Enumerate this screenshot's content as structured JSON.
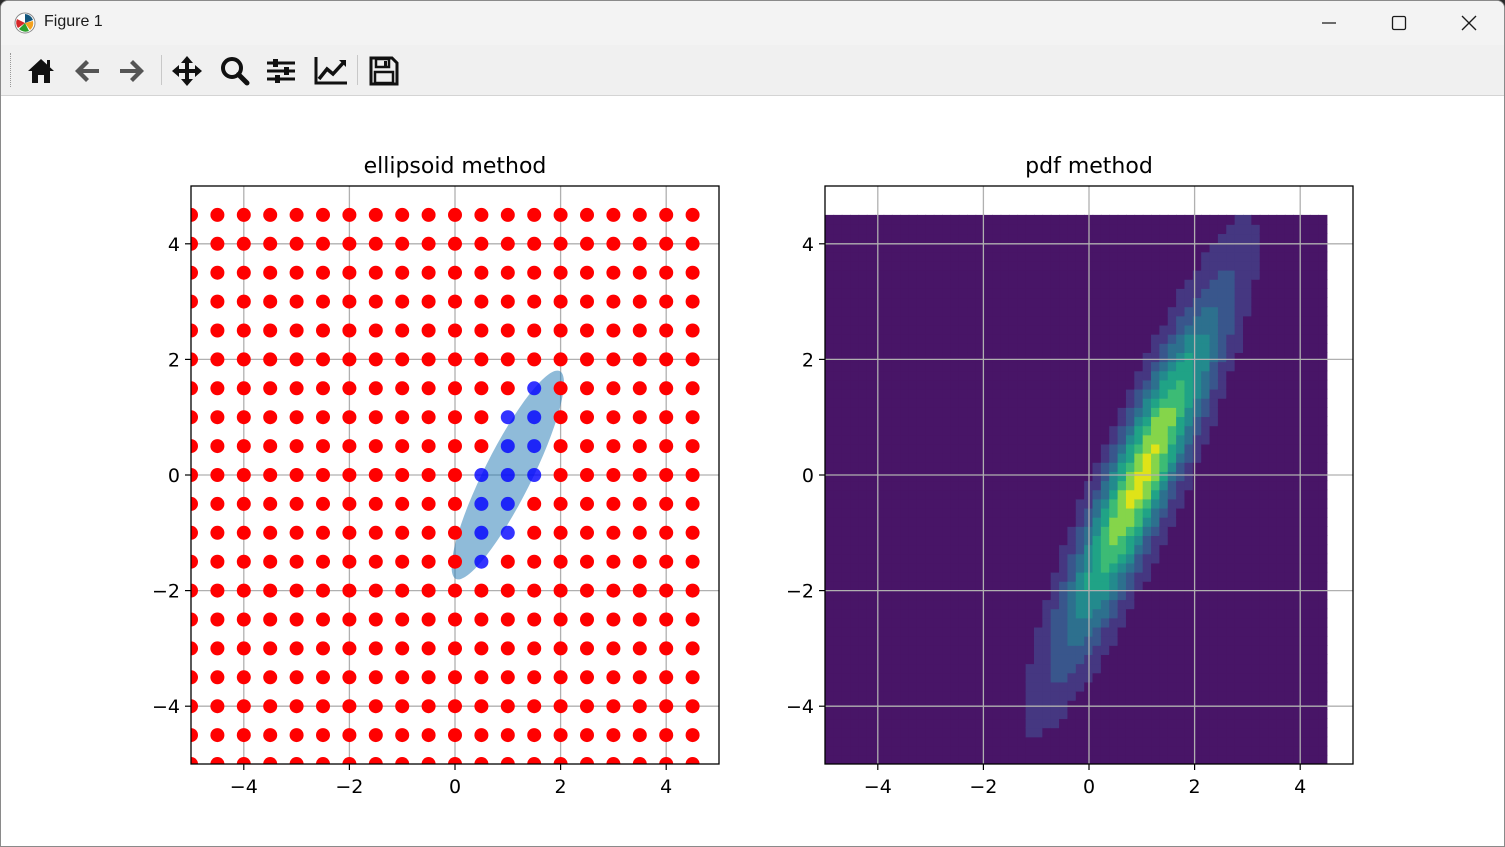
{
  "window": {
    "title": "Figure 1",
    "icon": "matplotlib-logo-icon",
    "controls": [
      "minimize-icon",
      "maximize-icon",
      "close-icon"
    ]
  },
  "toolbar": {
    "buttons": [
      {
        "name": "home",
        "icon": "home-icon"
      },
      {
        "name": "back",
        "icon": "arrow-left-icon"
      },
      {
        "name": "forward",
        "icon": "arrow-right-icon"
      },
      {
        "name": "pan",
        "icon": "move-icon"
      },
      {
        "name": "zoom",
        "icon": "magnifier-icon"
      },
      {
        "name": "subplots",
        "icon": "sliders-icon"
      },
      {
        "name": "edit",
        "icon": "line-chart-icon"
      },
      {
        "name": "save",
        "icon": "floppy-disk-icon"
      }
    ]
  },
  "colors": {
    "outside": "#ff0000",
    "inside": "#0000ff",
    "ellipse": "#1f77b4",
    "contour_background": "#481567",
    "grid": "#b0b0b0"
  },
  "chart_data": [
    {
      "type": "scatter",
      "title": "ellipsoid method",
      "xlim": [
        -5,
        5
      ],
      "ylim": [
        -5,
        5
      ],
      "xticks": [
        -4,
        -2,
        0,
        2,
        4
      ],
      "yticks": [
        -4,
        -2,
        0,
        2,
        4
      ],
      "xtick_labels": [
        "−4",
        "−2",
        "0",
        "2",
        "4"
      ],
      "ytick_labels": [
        "−4",
        "−2",
        "0",
        "2",
        "4"
      ],
      "grid": true,
      "grid_range": [
        -5,
        4.5
      ],
      "grid_step": 0.5,
      "ellipse": {
        "center": [
          1,
          0
        ],
        "half_long": 2.2,
        "half_short": 0.45,
        "angle_deg": 63.4
      },
      "inside_points": [
        [
          1.5,
          1.5
        ],
        [
          1,
          1
        ],
        [
          1.5,
          1
        ],
        [
          1,
          0.5
        ],
        [
          1.5,
          0.5
        ],
        [
          0.5,
          0
        ],
        [
          1,
          0
        ],
        [
          1.5,
          0
        ],
        [
          0.5,
          -0.5
        ],
        [
          1,
          -0.5
        ],
        [
          0.5,
          -1
        ],
        [
          1,
          -1
        ],
        [
          0.5,
          -1.5
        ]
      ],
      "series": [
        {
          "name": "",
          "color": "#ff0000"
        },
        {
          "name": "",
          "color": "#0000ff"
        }
      ]
    },
    {
      "type": "heatmap",
      "title": "pdf method",
      "xlim": [
        -5,
        5
      ],
      "ylim": [
        -5,
        5
      ],
      "filled_extent": {
        "x": [
          -5,
          4.5
        ],
        "y": [
          -5,
          4.5
        ]
      },
      "xticks": [
        -4,
        -2,
        0,
        2,
        4
      ],
      "yticks": [
        -4,
        -2,
        0,
        2,
        4
      ],
      "xtick_labels": [
        "−4",
        "−2",
        "0",
        "2",
        "4"
      ],
      "ytick_labels": [
        "−4",
        "−2",
        "0",
        "2",
        "4"
      ],
      "grid": true,
      "density": {
        "mean": [
          1,
          0
        ],
        "sigma_x": 1,
        "sigma_y": 2,
        "rho": 0.9
      },
      "levels": 8,
      "colormap": [
        "#481567",
        "#453781",
        "#39568c",
        "#2d708e",
        "#238a8d",
        "#20a386",
        "#3cbb75",
        "#85d54a",
        "#dfe318"
      ]
    }
  ]
}
